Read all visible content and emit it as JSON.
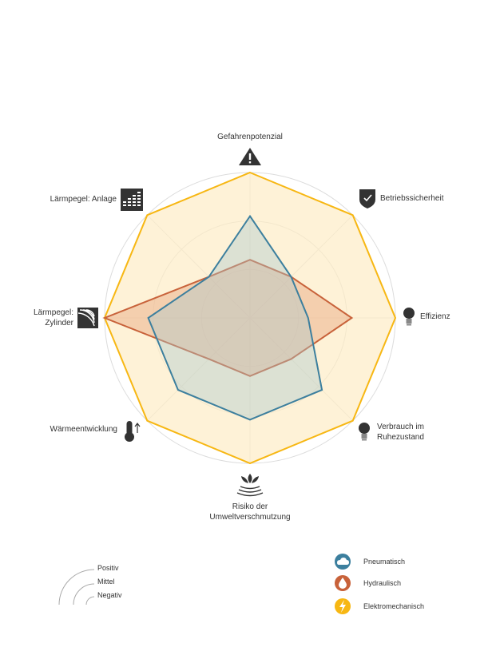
{
  "chart_data": {
    "type": "radar",
    "levels": [
      "Negativ",
      "Mittel",
      "Positiv"
    ],
    "axes": [
      {
        "key": "gefahrenpotenzial",
        "label": [
          "Gefahrenpotenzial"
        ],
        "icon": "warning-triangle-icon"
      },
      {
        "key": "betriebssicherheit",
        "label": [
          "Betriebssicherheit"
        ],
        "icon": "shield-check-icon"
      },
      {
        "key": "effizienz",
        "label": [
          "Effizienz"
        ],
        "icon": "lightbulb-icon"
      },
      {
        "key": "verbrauch",
        "label": [
          "Verbrauch im",
          "Ruhezustand"
        ],
        "icon": "lightbulb-off-icon"
      },
      {
        "key": "umwelt",
        "label": [
          "Risiko der",
          "Umweltverschmutzung"
        ],
        "icon": "lotus-waves-icon"
      },
      {
        "key": "waerme",
        "label": [
          "Wärmeentwicklung"
        ],
        "icon": "thermometer-up-icon"
      },
      {
        "key": "zylinder",
        "label": [
          "Lärmpegel:",
          "Zylinder"
        ],
        "icon": "sound-waves-icon"
      },
      {
        "key": "anlage",
        "label": [
          "Lärmpegel: Anlage"
        ],
        "icon": "equalizer-icon"
      }
    ],
    "rmax": 3,
    "series": [
      {
        "name": "Elektromechanisch",
        "color": "#f7b713",
        "fill": "#fde9bd",
        "fill_opacity": 0.6,
        "icon": "lightning-icon",
        "values": [
          3,
          3,
          3,
          3,
          3,
          3,
          3,
          3
        ]
      },
      {
        "name": "Hydraulisch",
        "color": "#c8623a",
        "fill": "#e9a47c",
        "fill_opacity": 0.45,
        "icon": "drop-icon",
        "values": [
          1.2,
          1.2,
          2.1,
          1.2,
          1.2,
          1.2,
          3,
          1.2
        ]
      },
      {
        "name": "Pneumatisch",
        "color": "#3c7f9e",
        "fill": "#a9c7cc",
        "fill_opacity": 0.4,
        "icon": "cloud-icon",
        "values": [
          2.1,
          1.2,
          1.2,
          2.1,
          2.1,
          2.1,
          2.1,
          1.2
        ]
      }
    ],
    "grid": true
  }
}
